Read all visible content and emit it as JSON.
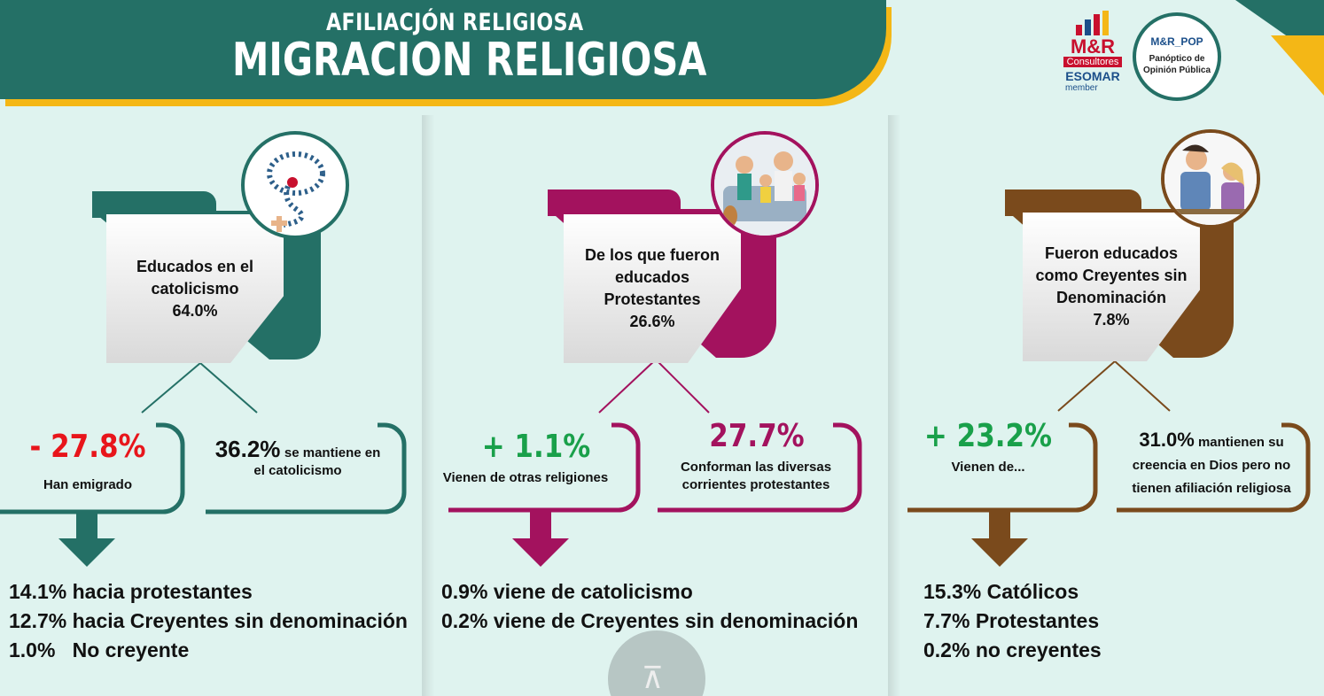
{
  "header": {
    "subtitle": "AFILIACJÓN RELIGIOSA",
    "title": "MIGRACION RELIGIOSA"
  },
  "logos": {
    "mr_name": "M&R",
    "mr_consultores": "Consultores",
    "mr_esomar": "ESOMAR",
    "mr_member": "member",
    "pop_name": "M&R_POP",
    "pop_line1": "Panóptico de",
    "pop_line2": "Opinión Pública"
  },
  "colors": {
    "teal": "#247066",
    "magenta": "#a3125e",
    "brown": "#7a4a1c",
    "red": "#e8151b",
    "green": "#19a04a",
    "gold": "#f4b716"
  },
  "columns": [
    {
      "icon": "rosary-icon",
      "card_lines": [
        "Educados en el",
        "catolicismo"
      ],
      "card_value": "64.0%",
      "left_big": "- 27.8%",
      "left_small": "Han emigrado",
      "right_big": "36.2%",
      "right_inline": "se mantiene en",
      "right_small": "el catolicismo",
      "list": [
        "14.1% hacia protestantes",
        "12.7% hacia Creyentes sin denominación",
        "1.0%   No creyente"
      ]
    },
    {
      "icon": "family-reading-icon",
      "card_lines": [
        "De los que fueron",
        "educados",
        "Protestantes"
      ],
      "card_value": "26.6%",
      "left_big": "+ 1.1%",
      "left_small": "Vienen de otras religiones",
      "right_big": "27.7%",
      "right_small_1": "Conforman las diversas",
      "right_small_2": "corrientes protestantes",
      "list": [
        "0.9% viene de catolicismo",
        "0.2% viene de Creyentes sin denominación"
      ]
    },
    {
      "icon": "praying-people-icon",
      "card_lines": [
        "Fueron educados",
        "como Creyentes sin",
        "Denominación"
      ],
      "card_value": "7.8%",
      "left_big": "+ 23.2%",
      "left_small": "Vienen de...",
      "right_big": "31.0%",
      "right_inline": "mantienen su",
      "right_small_1": "creencia en Dios pero no",
      "right_small_2": "tienen afiliación religiosa",
      "list": [
        "15.3% Católicos",
        "7.7% Protestantes",
        "0.2% no creyentes"
      ]
    }
  ]
}
